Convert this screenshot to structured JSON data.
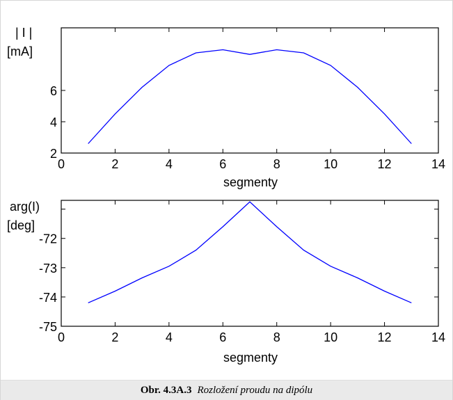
{
  "caption": {
    "label": "Obr. 4.3A.3",
    "text": "Rozložení proudu na dipólu"
  },
  "chart_data": [
    {
      "type": "line",
      "ylabel_lines": [
        "| I |",
        "[mA]"
      ],
      "xlabel": "segmenty",
      "xlim": [
        0,
        14
      ],
      "ylim": [
        2,
        10
      ],
      "xticks": [
        0,
        2,
        4,
        6,
        8,
        10,
        12,
        14
      ],
      "yticks": [
        2,
        4,
        6
      ],
      "series": [
        {
          "color": "#0000ff",
          "x": [
            1,
            2,
            3,
            4,
            5,
            6,
            7,
            8,
            9,
            10,
            11,
            12,
            13
          ],
          "y": [
            2.6,
            4.5,
            6.2,
            7.6,
            8.4,
            8.6,
            8.3,
            8.6,
            8.4,
            7.6,
            6.2,
            4.5,
            2.6
          ]
        }
      ],
      "grid": false
    },
    {
      "type": "line",
      "ylabel_lines": [
        "arg(I)",
        "[deg]"
      ],
      "xlabel": "segmenty",
      "xlim": [
        0,
        14
      ],
      "ylim": [
        -75,
        -70.7
      ],
      "xticks": [
        0,
        2,
        4,
        6,
        8,
        10,
        12,
        14
      ],
      "yticks": [
        -75,
        -74,
        -73,
        -72
      ],
      "yticks_shown_only": [
        -71
      ],
      "series": [
        {
          "color": "#0000ff",
          "x": [
            1,
            2,
            3,
            4,
            5,
            6,
            7,
            8,
            9,
            10,
            11,
            12,
            13
          ],
          "y": [
            -74.2,
            -73.8,
            -73.35,
            -72.95,
            -72.4,
            -71.6,
            -70.75,
            -71.6,
            -72.4,
            -72.95,
            -73.35,
            -73.8,
            -74.2
          ]
        }
      ],
      "grid": false
    }
  ]
}
